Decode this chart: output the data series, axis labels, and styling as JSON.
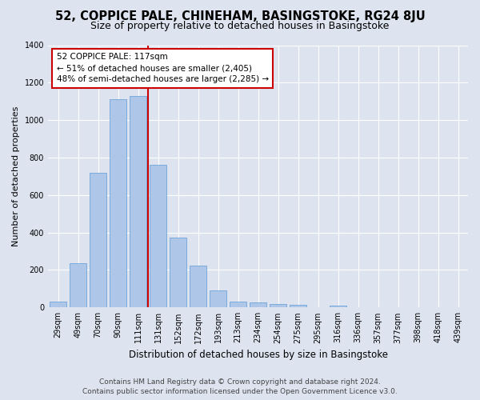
{
  "title": "52, COPPICE PALE, CHINEHAM, BASINGSTOKE, RG24 8JU",
  "subtitle": "Size of property relative to detached houses in Basingstoke",
  "xlabel": "Distribution of detached houses by size in Basingstoke",
  "ylabel": "Number of detached properties",
  "categories": [
    "29sqm",
    "49sqm",
    "70sqm",
    "90sqm",
    "111sqm",
    "131sqm",
    "152sqm",
    "172sqm",
    "193sqm",
    "213sqm",
    "234sqm",
    "254sqm",
    "275sqm",
    "295sqm",
    "316sqm",
    "336sqm",
    "357sqm",
    "377sqm",
    "398sqm",
    "418sqm",
    "439sqm"
  ],
  "values": [
    30,
    235,
    720,
    1110,
    1130,
    760,
    375,
    225,
    90,
    30,
    25,
    20,
    15,
    0,
    10,
    0,
    0,
    0,
    0,
    0,
    0
  ],
  "bar_color": "#aec6e8",
  "bar_edge_color": "#5b9bd5",
  "vline_x": 4.5,
  "vline_color": "#cc0000",
  "annotation_text": "52 COPPICE PALE: 117sqm\n← 51% of detached houses are smaller (2,405)\n48% of semi-detached houses are larger (2,285) →",
  "annotation_box_color": "#ffffff",
  "annotation_box_edge_color": "#cc0000",
  "ylim": [
    0,
    1400
  ],
  "yticks": [
    0,
    200,
    400,
    600,
    800,
    1000,
    1200,
    1400
  ],
  "footer1": "Contains HM Land Registry data © Crown copyright and database right 2024.",
  "footer2": "Contains public sector information licensed under the Open Government Licence v3.0.",
  "bg_color": "#dde4f0",
  "plot_bg_color": "#dde4f0",
  "grid_color": "#ffffff",
  "title_fontsize": 10.5,
  "subtitle_fontsize": 9,
  "xlabel_fontsize": 8.5,
  "ylabel_fontsize": 8,
  "tick_fontsize": 7,
  "footer_fontsize": 6.5,
  "annotation_fontsize": 7.5
}
